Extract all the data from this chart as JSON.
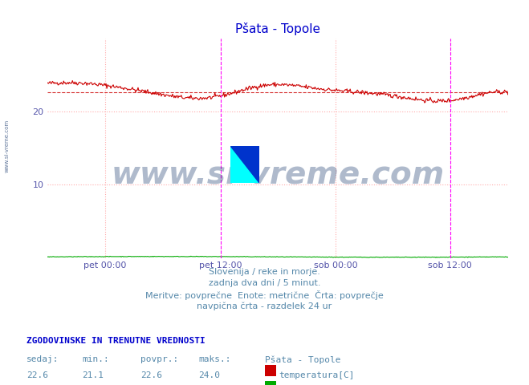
{
  "title": "Pšata - Topole",
  "title_color": "#0000cc",
  "bg_color": "#ffffff",
  "plot_bg_color": "#ffffff",
  "grid_color": "#ffaaaa",
  "ylim": [
    0,
    30
  ],
  "yticks": [
    10,
    20
  ],
  "xlim": [
    0,
    575
  ],
  "xlabel_ticks": [
    72,
    216,
    360,
    503
  ],
  "xlabel_labels": [
    "pet 00:00",
    "pet 12:00",
    "sob 00:00",
    "sob 12:00"
  ],
  "temp_avg": 22.6,
  "temp_min": 21.1,
  "temp_max": 24.0,
  "flow_avg": 0.2,
  "flow_min": 0.1,
  "flow_max": 0.3,
  "flow_sedaj": 0.1,
  "temp_sedaj": 22.6,
  "dashed_line_y": 22.6,
  "dashed_line_color": "#cc0000",
  "temp_line_color": "#cc0000",
  "flow_line_color": "#00aa00",
  "vline_color": "#ff00ff",
  "vline_x1": 216,
  "vline_x2": 503,
  "watermark_text": "www.si-vreme.com",
  "watermark_color": "#1a3a6e",
  "watermark_alpha": 0.35,
  "info_line1": "Slovenija / reke in morje.",
  "info_line2": "zadnja dva dni / 5 minut.",
  "info_line3": "Meritve: povprečne  Enote: metrične  Črta: povprečje",
  "info_line4": "navpična črta - razdelek 24 ur",
  "table_header": "ZGODOVINSKE IN TRENUTNE VREDNOSTI",
  "col1_label": "sedaj:",
  "col2_label": "min.:",
  "col3_label": "povpr.:",
  "col4_label": "maks.:",
  "col5_label": "Pšata - Topole",
  "left_label": "www.si-vreme.com",
  "left_label_color": "#1a3a6e",
  "tick_color": "#5555aa",
  "text_color": "#5588aa",
  "header_color": "#0000cc"
}
